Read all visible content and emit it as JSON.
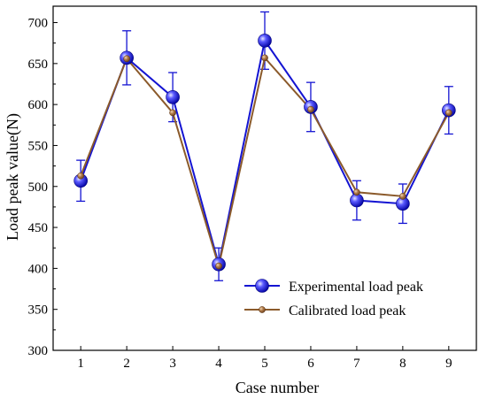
{
  "chart_data": {
    "type": "line",
    "xlabel": "Case number",
    "ylabel": "Load peak value(N)",
    "categories": [
      "1",
      "2",
      "3",
      "4",
      "5",
      "6",
      "7",
      "8",
      "9"
    ],
    "x": [
      1,
      2,
      3,
      4,
      5,
      6,
      7,
      8,
      9
    ],
    "ylim": [
      300,
      720
    ],
    "xlim": [
      0.4,
      9.6
    ],
    "yticks": [
      300,
      350,
      400,
      450,
      500,
      550,
      600,
      650,
      700
    ],
    "grid": false,
    "legend_position": "bottom-right",
    "series": [
      {
        "name": "Experimental load peak",
        "color": "#1414d2",
        "marker": "sphere",
        "values": [
          507,
          657,
          609,
          405,
          678,
          597,
          483,
          479,
          593
        ],
        "error": [
          25,
          33,
          30,
          20,
          35,
          30,
          24,
          24,
          29
        ]
      },
      {
        "name": "Calibrated load peak",
        "color": "#8b5a2b",
        "marker": "circle",
        "values": [
          513,
          656,
          590,
          403,
          657,
          594,
          493,
          488,
          590
        ]
      }
    ]
  }
}
